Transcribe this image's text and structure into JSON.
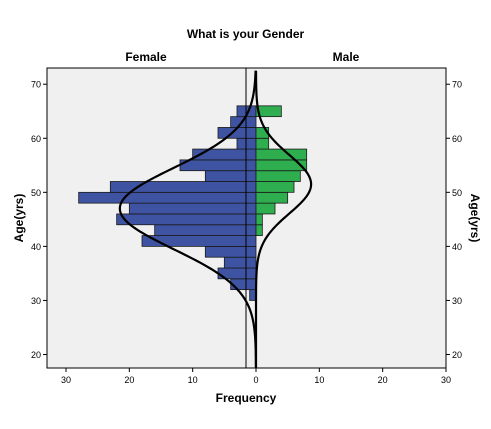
{
  "chart_data": {
    "type": "bar",
    "orientation": "horizontal-back-to-back",
    "title": "What is your Gender",
    "panel_labels": [
      "Female",
      "Male"
    ],
    "xlabel": "Frequency",
    "ylabel": "Age(yrs)",
    "ylabel_right": "Age(yrs)",
    "ylim": [
      17.5,
      73
    ],
    "xlim": [
      -33,
      30
    ],
    "x_ticks": [
      {
        "value": -30,
        "label": "30"
      },
      {
        "value": -20,
        "label": "20"
      },
      {
        "value": -10,
        "label": "10"
      },
      {
        "value": 0,
        "label": "0"
      },
      {
        "value": 10,
        "label": "10"
      },
      {
        "value": 20,
        "label": "20"
      },
      {
        "value": 30,
        "label": "30"
      }
    ],
    "y_ticks": [
      20,
      30,
      40,
      50,
      60,
      70
    ],
    "bin_width": 2,
    "series": [
      {
        "name": "Female",
        "color": "#3E54A3",
        "bins": [
          {
            "start": 30,
            "count": 1
          },
          {
            "start": 32,
            "count": 4
          },
          {
            "start": 34,
            "count": 6
          },
          {
            "start": 36,
            "count": 5
          },
          {
            "start": 38,
            "count": 8
          },
          {
            "start": 40,
            "count": 18
          },
          {
            "start": 42,
            "count": 16
          },
          {
            "start": 44,
            "count": 22
          },
          {
            "start": 46,
            "count": 20
          },
          {
            "start": 48,
            "count": 28
          },
          {
            "start": 50,
            "count": 23
          },
          {
            "start": 52,
            "count": 8
          },
          {
            "start": 54,
            "count": 12
          },
          {
            "start": 56,
            "count": 10
          },
          {
            "start": 58,
            "count": 3
          },
          {
            "start": 60,
            "count": 6
          },
          {
            "start": 62,
            "count": 4
          },
          {
            "start": 64,
            "count": 3
          }
        ],
        "normal_curve": {
          "mean": 47,
          "sd": 7.5,
          "peak": 21.5
        }
      },
      {
        "name": "Male",
        "color": "#2EAE4E",
        "bins": [
          {
            "start": 42,
            "count": 1
          },
          {
            "start": 44,
            "count": 1
          },
          {
            "start": 46,
            "count": 3
          },
          {
            "start": 48,
            "count": 5
          },
          {
            "start": 50,
            "count": 6
          },
          {
            "start": 52,
            "count": 7
          },
          {
            "start": 54,
            "count": 8
          },
          {
            "start": 56,
            "count": 8
          },
          {
            "start": 58,
            "count": 2
          },
          {
            "start": 60,
            "count": 2
          },
          {
            "start": 62,
            "count": 0
          },
          {
            "start": 64,
            "count": 4
          }
        ],
        "normal_curve": {
          "mean": 51.5,
          "sd": 5.4,
          "peak": 8.7
        }
      }
    ],
    "grid": false,
    "curve_color": "#000000",
    "plot_background": "#F0F0F0"
  }
}
